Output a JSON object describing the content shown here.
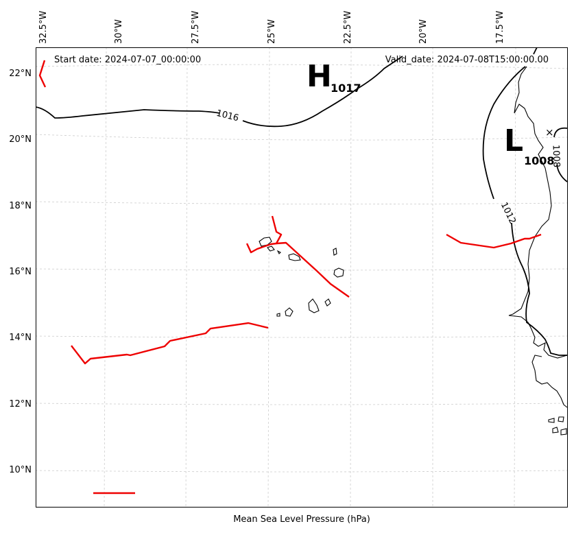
{
  "map": {
    "start_date": "Start date: 2024-07-07_00:00:00",
    "valid_date": "Valid_date: 2024-07-08T15:00:00.00",
    "caption": "Mean Sea Level Pressure (hPa)",
    "lon_ticks": [
      "32.5°W",
      "30°W",
      "27.5°W",
      "25°W",
      "22.5°W",
      "20°W",
      "17.5°W"
    ],
    "lat_ticks": [
      "22°N",
      "20°N",
      "18°N",
      "16°N",
      "14°N",
      "12°N",
      "10°N"
    ],
    "isobar_labels": [
      "1016",
      "1012",
      "1008"
    ],
    "high": {
      "letter": "H",
      "value": "1017",
      "symbol": "high-pressure-icon"
    },
    "low": {
      "letter": "L",
      "value": "1008",
      "marker": "×",
      "symbol": "low-pressure-icon"
    },
    "colors": {
      "isobar": "#000000",
      "front": "#ee0000",
      "grid": "#cccccc"
    }
  }
}
